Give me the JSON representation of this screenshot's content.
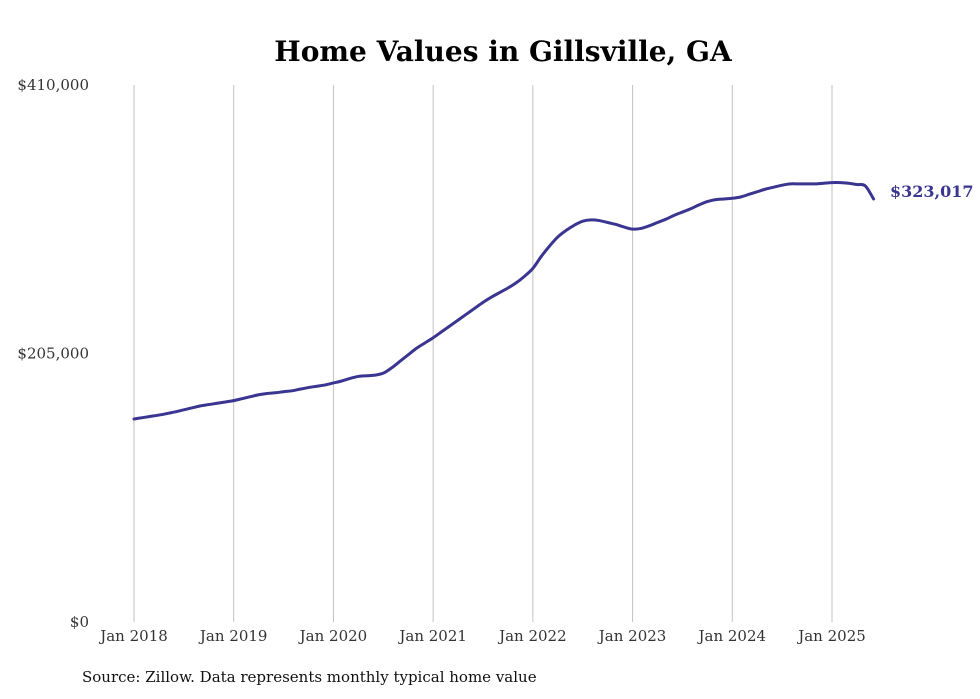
{
  "colors": {
    "line": "#3a3591",
    "grid": "#c2c2c2",
    "text": "#333333"
  },
  "source_note": "Source: Zillow. Data represents monthly typical home value",
  "chart_data": {
    "type": "line",
    "title": "Home Values in Gillsville, GA",
    "xlabel": "",
    "ylabel": "",
    "ylim": [
      0,
      410000
    ],
    "y_ticks": [
      0,
      205000,
      410000
    ],
    "y_tick_labels": [
      "$0",
      "$205,000",
      "$410,000"
    ],
    "x_ticks": [
      "2018-01",
      "2019-01",
      "2020-01",
      "2021-01",
      "2022-01",
      "2023-01",
      "2024-01",
      "2025-01"
    ],
    "x_tick_labels": [
      "Jan 2018",
      "Jan 2019",
      "Jan 2020",
      "Jan 2021",
      "Jan 2022",
      "Jan 2023",
      "Jan 2024",
      "Jan 2025"
    ],
    "grid": "vertical",
    "end_label": "$323,017",
    "series": [
      {
        "color": "#3a3591",
        "x": [
          "2018-01",
          "2018-02",
          "2018-03",
          "2018-04",
          "2018-05",
          "2018-06",
          "2018-07",
          "2018-08",
          "2018-09",
          "2018-10",
          "2018-11",
          "2018-12",
          "2019-01",
          "2019-02",
          "2019-03",
          "2019-04",
          "2019-05",
          "2019-06",
          "2019-07",
          "2019-08",
          "2019-09",
          "2019-10",
          "2019-11",
          "2019-12",
          "2020-01",
          "2020-02",
          "2020-03",
          "2020-04",
          "2020-05",
          "2020-06",
          "2020-07",
          "2020-08",
          "2020-09",
          "2020-10",
          "2020-11",
          "2020-12",
          "2021-01",
          "2021-02",
          "2021-03",
          "2021-04",
          "2021-05",
          "2021-06",
          "2021-07",
          "2021-08",
          "2021-09",
          "2021-10",
          "2021-11",
          "2021-12",
          "2022-01",
          "2022-02",
          "2022-03",
          "2022-04",
          "2022-05",
          "2022-06",
          "2022-07",
          "2022-08",
          "2022-09",
          "2022-10",
          "2022-11",
          "2022-12",
          "2023-01",
          "2023-02",
          "2023-03",
          "2023-04",
          "2023-05",
          "2023-06",
          "2023-07",
          "2023-08",
          "2023-09",
          "2023-10",
          "2023-11",
          "2023-12",
          "2024-01",
          "2024-02",
          "2024-03",
          "2024-04",
          "2024-05",
          "2024-06",
          "2024-07",
          "2024-08",
          "2024-09",
          "2024-10",
          "2024-11",
          "2024-12",
          "2025-01",
          "2025-02",
          "2025-03",
          "2025-04",
          "2025-05",
          "2025-06"
        ],
        "values": [
          155000,
          156000,
          157000,
          158000,
          159200,
          160500,
          162000,
          163500,
          165000,
          166000,
          167000,
          168000,
          169000,
          170500,
          172000,
          173500,
          174500,
          175000,
          175800,
          176500,
          177800,
          179000,
          180000,
          181000,
          182500,
          184000,
          186000,
          187500,
          188000,
          188500,
          190000,
          194000,
          199000,
          204000,
          209000,
          213000,
          217000,
          221500,
          226000,
          230500,
          235000,
          239500,
          244000,
          248000,
          251500,
          255000,
          259000,
          264000,
          270000,
          279000,
          287000,
          294000,
          299000,
          303000,
          306000,
          307000,
          306500,
          305000,
          303500,
          301500,
          300000,
          300500,
          302500,
          305000,
          307500,
          310500,
          313000,
          315500,
          318500,
          321000,
          322500,
          323000,
          323500,
          324500,
          326500,
          328500,
          330500,
          332000,
          333500,
          334500,
          334500,
          334500,
          334500,
          335000,
          335500,
          335500,
          335000,
          334000,
          333000,
          323017
        ]
      }
    ]
  }
}
